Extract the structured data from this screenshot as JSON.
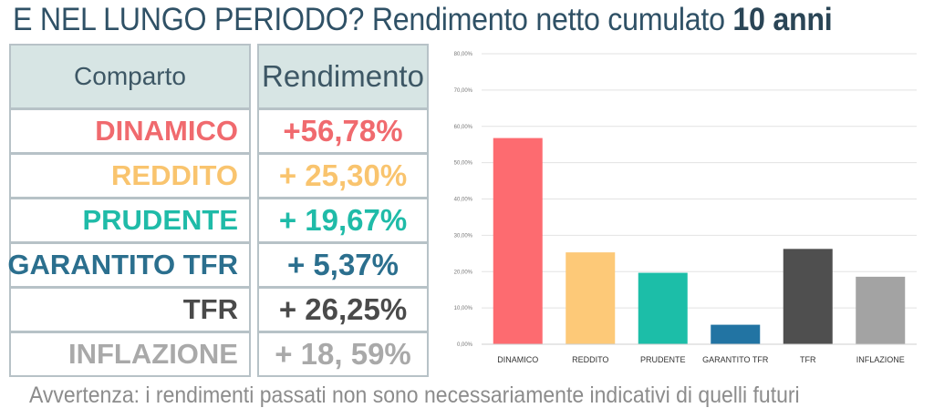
{
  "title": {
    "main": "E NEL LUNGO PERIODO? Rendimento netto cumulato ",
    "bold": "10 anni"
  },
  "table": {
    "header": {
      "comparto": "Comparto",
      "rendimento": "Rendimento"
    },
    "rows": [
      {
        "name": "DINAMICO",
        "value": "+56,78%",
        "color": "#f06a6e"
      },
      {
        "name": "REDDITO",
        "value": "+ 25,30%",
        "color": "#f9c46e"
      },
      {
        "name": "PRUDENTE",
        "value": "+ 19,67%",
        "color": "#1fbba8"
      },
      {
        "name": "GARANTITO TFR",
        "value": "+ 5,37%",
        "color": "#2b6f8e"
      },
      {
        "name": "TFR",
        "value": "+ 26,25%",
        "color": "#4a4a4a"
      },
      {
        "name": "INFLAZIONE",
        "value": "+ 18, 59%",
        "color": "#a9a9a9"
      }
    ]
  },
  "chart_data": {
    "type": "bar",
    "categories": [
      "DINAMICO",
      "REDDITO",
      "PRUDENTE",
      "GARANTITO TFR",
      "TFR",
      "INFLAZIONE"
    ],
    "values": [
      56.78,
      25.3,
      19.67,
      5.37,
      26.25,
      18.59
    ],
    "colors": [
      "#fd6b70",
      "#fdc978",
      "#1cbea8",
      "#2274a3",
      "#4f4f4f",
      "#a3a3a3"
    ],
    "ylim": [
      0,
      80
    ],
    "yticks": [
      "0,00%",
      "10,00%",
      "20,00%",
      "30,00%",
      "40,00%",
      "50,00%",
      "60,00%",
      "70,00%",
      "80,00%"
    ],
    "grid": true,
    "legend": "none"
  },
  "footer": {
    "note": "Avvertenza: i rendimenti passati non sono necessariamente indicativi di quelli futuri"
  }
}
